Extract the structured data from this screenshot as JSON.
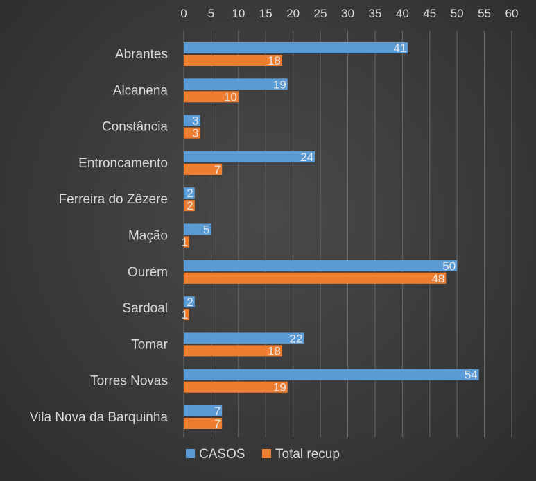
{
  "chart_data": {
    "type": "bar",
    "orientation": "horizontal",
    "categories": [
      "Abrantes",
      "Alcanena",
      "Constância",
      "Entroncamento",
      "Ferreira do Zêzere",
      "Mação",
      "Ourém",
      "Sardoal",
      "Tomar",
      "Torres Novas",
      "Vila Nova da Barquinha"
    ],
    "series": [
      {
        "name": "CASOS",
        "color": "#5b9bd5",
        "values": [
          41,
          19,
          3,
          24,
          2,
          5,
          50,
          2,
          22,
          54,
          7
        ]
      },
      {
        "name": "Total recup",
        "color": "#ed7d31",
        "values": [
          18,
          10,
          3,
          7,
          2,
          1,
          48,
          1,
          18,
          19,
          7
        ]
      }
    ],
    "xlim": [
      0,
      60
    ],
    "xticks": [
      0,
      5,
      10,
      15,
      20,
      25,
      30,
      35,
      40,
      45,
      50,
      55,
      60
    ],
    "x_axis_position": "top",
    "grid": true,
    "legend_position": "bottom",
    "data_labels": true
  }
}
